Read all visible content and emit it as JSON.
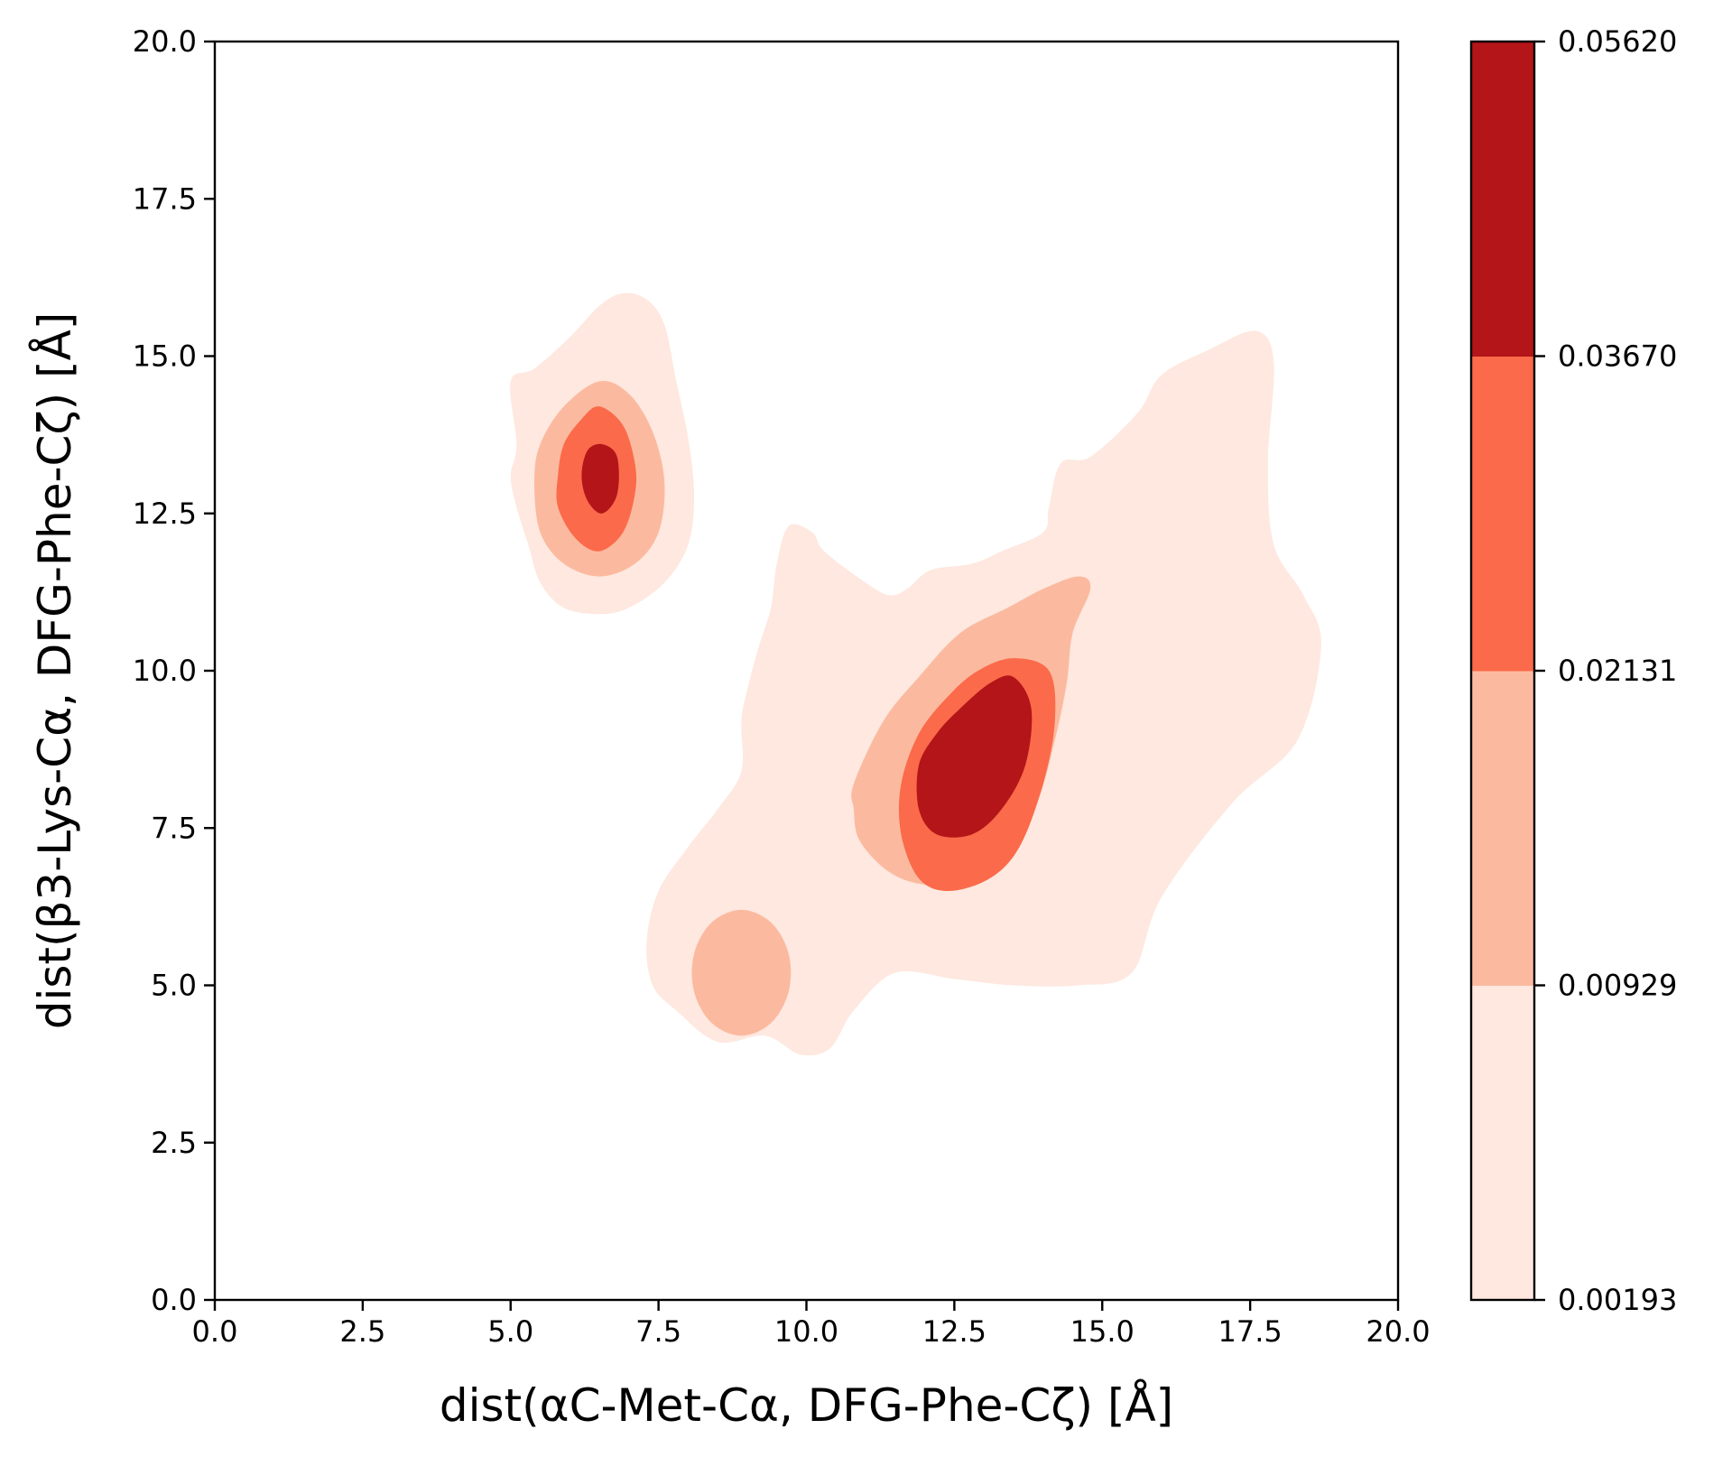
{
  "chart_data": {
    "type": "contour",
    "xlabel": "dist(αC-Met-Cα, DFG-Phe-Cζ) [Å]",
    "ylabel": "dist(β3-Lys-Cα, DFG-Phe-Cζ) [Å]",
    "xlim": [
      0,
      20
    ],
    "ylim": [
      0,
      20
    ],
    "x_ticks": [
      "0.0",
      "2.5",
      "5.0",
      "7.5",
      "10.0",
      "12.5",
      "15.0",
      "17.5",
      "20.0"
    ],
    "y_ticks": [
      "0.0",
      "2.5",
      "5.0",
      "7.5",
      "10.0",
      "12.5",
      "15.0",
      "17.5",
      "20.0"
    ],
    "grid": false,
    "colorbar": {
      "position": "right",
      "levels": [
        0.00193,
        0.00929,
        0.02131,
        0.0367,
        0.0562
      ],
      "tick_labels": [
        "0.00193",
        "0.00929",
        "0.02131",
        "0.03670",
        "0.05620"
      ],
      "colors": [
        "#fee8df",
        "#fbbaa0",
        "#fb6a4a",
        "#b31519"
      ]
    },
    "peaks": [
      {
        "x": 6.5,
        "y": 13.1
      },
      {
        "x": 12.4,
        "y": 8.6
      },
      {
        "x": 8.9,
        "y": 5.3
      }
    ],
    "regions": [
      {
        "level": 0,
        "points": [
          [
            5.1,
            13.6
          ],
          [
            5.0,
            14.6
          ],
          [
            5.4,
            14.8
          ],
          [
            6.0,
            15.3
          ],
          [
            6.5,
            15.8
          ],
          [
            6.9,
            16.0
          ],
          [
            7.3,
            15.9
          ],
          [
            7.6,
            15.5
          ],
          [
            7.8,
            14.6
          ],
          [
            8.0,
            13.7
          ],
          [
            8.1,
            12.8
          ],
          [
            8.0,
            12.0
          ],
          [
            7.6,
            11.4
          ],
          [
            7.0,
            11.0
          ],
          [
            6.5,
            10.9
          ],
          [
            5.9,
            11.0
          ],
          [
            5.5,
            11.4
          ],
          [
            5.3,
            12.0
          ],
          [
            5.1,
            12.6
          ],
          [
            5.0,
            13.1
          ]
        ]
      },
      {
        "level": 0,
        "points": [
          [
            9.3,
            4.2
          ],
          [
            9.9,
            3.9
          ],
          [
            10.4,
            4.0
          ],
          [
            10.8,
            4.6
          ],
          [
            11.5,
            5.2
          ],
          [
            12.5,
            5.1
          ],
          [
            13.5,
            5.0
          ],
          [
            14.6,
            5.0
          ],
          [
            15.5,
            5.2
          ],
          [
            16.0,
            6.4
          ],
          [
            17.2,
            7.9
          ],
          [
            18.3,
            8.9
          ],
          [
            18.7,
            10.4
          ],
          [
            18.4,
            11.2
          ],
          [
            17.9,
            12.0
          ],
          [
            17.8,
            13.3
          ],
          [
            17.9,
            14.9
          ],
          [
            17.6,
            15.4
          ],
          [
            16.8,
            15.1
          ],
          [
            16.0,
            14.7
          ],
          [
            15.6,
            14.1
          ],
          [
            14.8,
            13.4
          ],
          [
            14.3,
            13.3
          ],
          [
            14.1,
            12.6
          ],
          [
            14.0,
            12.2
          ],
          [
            13.3,
            11.9
          ],
          [
            12.8,
            11.7
          ],
          [
            12.1,
            11.6
          ],
          [
            11.7,
            11.3
          ],
          [
            11.4,
            11.2
          ],
          [
            11.0,
            11.4
          ],
          [
            10.3,
            11.9
          ],
          [
            10.1,
            12.2
          ],
          [
            9.7,
            12.3
          ],
          [
            9.5,
            11.7
          ],
          [
            9.4,
            11.0
          ],
          [
            9.2,
            10.4
          ],
          [
            9.0,
            9.7
          ],
          [
            8.9,
            9.2
          ],
          [
            8.9,
            8.4
          ],
          [
            8.5,
            7.8
          ],
          [
            8.0,
            7.2
          ],
          [
            7.5,
            6.5
          ],
          [
            7.3,
            5.7
          ],
          [
            7.4,
            5.0
          ],
          [
            7.8,
            4.6
          ],
          [
            8.5,
            4.1
          ]
        ]
      },
      {
        "level": 1,
        "points": [
          [
            5.4,
            13.0
          ],
          [
            5.5,
            13.6
          ],
          [
            5.9,
            14.2
          ],
          [
            6.5,
            14.6
          ],
          [
            7.0,
            14.4
          ],
          [
            7.4,
            13.8
          ],
          [
            7.6,
            13.0
          ],
          [
            7.5,
            12.2
          ],
          [
            7.1,
            11.7
          ],
          [
            6.5,
            11.5
          ],
          [
            5.9,
            11.7
          ],
          [
            5.5,
            12.2
          ]
        ]
      },
      {
        "level": 1,
        "points": [
          [
            8.1,
            5.5
          ],
          [
            8.4,
            6.0
          ],
          [
            8.9,
            6.2
          ],
          [
            9.4,
            6.0
          ],
          [
            9.7,
            5.5
          ],
          [
            9.7,
            4.9
          ],
          [
            9.4,
            4.4
          ],
          [
            8.9,
            4.2
          ],
          [
            8.4,
            4.4
          ],
          [
            8.1,
            4.9
          ]
        ]
      },
      {
        "level": 1,
        "points": [
          [
            10.8,
            8.2
          ],
          [
            11.3,
            9.2
          ],
          [
            11.9,
            9.9
          ],
          [
            12.6,
            10.6
          ],
          [
            13.4,
            11.0
          ],
          [
            14.0,
            11.3
          ],
          [
            14.6,
            11.5
          ],
          [
            14.8,
            11.3
          ],
          [
            14.5,
            10.6
          ],
          [
            14.4,
            9.8
          ],
          [
            14.2,
            8.9
          ],
          [
            13.9,
            7.9
          ],
          [
            13.4,
            7.0
          ],
          [
            12.8,
            6.6
          ],
          [
            12.0,
            6.6
          ],
          [
            11.4,
            6.8
          ],
          [
            10.9,
            7.3
          ],
          [
            10.8,
            7.8
          ]
        ]
      },
      {
        "level": 2,
        "points": [
          [
            5.8,
            13.1
          ],
          [
            5.9,
            13.6
          ],
          [
            6.2,
            14.0
          ],
          [
            6.5,
            14.2
          ],
          [
            6.9,
            13.9
          ],
          [
            7.1,
            13.3
          ],
          [
            7.1,
            12.8
          ],
          [
            6.9,
            12.2
          ],
          [
            6.5,
            11.9
          ],
          [
            6.1,
            12.1
          ],
          [
            5.8,
            12.6
          ]
        ]
      },
      {
        "level": 2,
        "points": [
          [
            11.6,
            8.2
          ],
          [
            11.9,
            9.0
          ],
          [
            12.4,
            9.6
          ],
          [
            12.9,
            10.0
          ],
          [
            13.5,
            10.2
          ],
          [
            14.1,
            10.0
          ],
          [
            14.2,
            9.2
          ],
          [
            14.0,
            8.2
          ],
          [
            13.6,
            7.2
          ],
          [
            13.1,
            6.7
          ],
          [
            12.4,
            6.5
          ],
          [
            11.9,
            6.7
          ],
          [
            11.6,
            7.4
          ]
        ]
      },
      {
        "level": 3,
        "points": [
          [
            6.2,
            13.1
          ],
          [
            6.3,
            13.5
          ],
          [
            6.55,
            13.6
          ],
          [
            6.8,
            13.4
          ],
          [
            6.8,
            12.8
          ],
          [
            6.55,
            12.5
          ],
          [
            6.3,
            12.7
          ]
        ]
      },
      {
        "level": 3,
        "points": [
          [
            11.9,
            8.5
          ],
          [
            12.2,
            9.0
          ],
          [
            12.6,
            9.4
          ],
          [
            13.1,
            9.8
          ],
          [
            13.5,
            9.9
          ],
          [
            13.8,
            9.4
          ],
          [
            13.7,
            8.5
          ],
          [
            13.3,
            7.8
          ],
          [
            12.8,
            7.4
          ],
          [
            12.2,
            7.4
          ],
          [
            11.9,
            7.8
          ]
        ]
      }
    ]
  }
}
